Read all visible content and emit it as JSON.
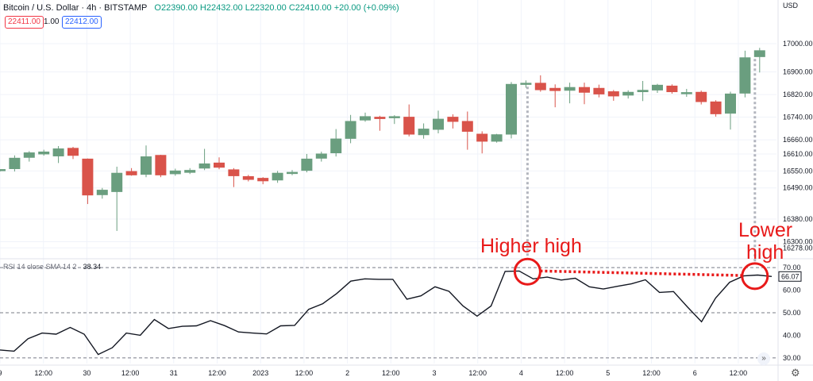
{
  "header": {
    "symbol": "Bitcoin / U.S. Dollar · 4h · BITSTAMP",
    "ohlc": "O22390.00 H22432.00 L22320.00 C22410.00 +20.00 (+0.09%)",
    "bid": "22411.00",
    "spread": "1.00",
    "ask": "22412.00"
  },
  "currency": "USD",
  "rsi_label": "RSI 14 close SMA 14 2",
  "rsi_value_label": "38.34",
  "rsi_last_label": "66.07",
  "annotations": {
    "higher_high": "Higher high",
    "lower_high_1": "Lower",
    "lower_high_2": "high"
  },
  "colors": {
    "up": "#6a9e7f",
    "down": "#d9534a",
    "rsi_line": "#131722",
    "annotation": "#e81919"
  },
  "chart_data": [
    {
      "type": "candlestick",
      "title": "Bitcoin / U.S. Dollar · 4h · BITSTAMP",
      "ylim": [
        16248,
        17070
      ],
      "y_ticks": [
        17000,
        16900,
        16820,
        16740,
        16660,
        16610,
        16550,
        16490,
        16380,
        16300,
        16278
      ],
      "y_tick_labels": [
        "17000.00",
        "16900.00",
        "16820.00",
        "16740.00",
        "16660.00",
        "16610.00",
        "16550.00",
        "16490.00",
        "16380.00",
        "16300.00",
        "16278.00"
      ],
      "candles": [
        {
          "o": 16552,
          "h": 16556,
          "l": 16548,
          "c": 16555
        },
        {
          "o": 16558,
          "h": 16605,
          "l": 16548,
          "c": 16595
        },
        {
          "o": 16598,
          "h": 16620,
          "l": 16583,
          "c": 16614
        },
        {
          "o": 16610,
          "h": 16625,
          "l": 16604,
          "c": 16617
        },
        {
          "o": 16603,
          "h": 16638,
          "l": 16578,
          "c": 16628
        },
        {
          "o": 16630,
          "h": 16635,
          "l": 16592,
          "c": 16605
        },
        {
          "o": 16592,
          "h": 16594,
          "l": 16433,
          "c": 16465
        },
        {
          "o": 16466,
          "h": 16490,
          "l": 16452,
          "c": 16482
        },
        {
          "o": 16477,
          "h": 16565,
          "l": 16338,
          "c": 16542
        },
        {
          "o": 16548,
          "h": 16560,
          "l": 16533,
          "c": 16536
        },
        {
          "o": 16538,
          "h": 16640,
          "l": 16528,
          "c": 16600
        },
        {
          "o": 16605,
          "h": 16607,
          "l": 16528,
          "c": 16536
        },
        {
          "o": 16540,
          "h": 16558,
          "l": 16533,
          "c": 16550
        },
        {
          "o": 16545,
          "h": 16560,
          "l": 16539,
          "c": 16552
        },
        {
          "o": 16560,
          "h": 16628,
          "l": 16553,
          "c": 16575
        },
        {
          "o": 16578,
          "h": 16598,
          "l": 16556,
          "c": 16563
        },
        {
          "o": 16554,
          "h": 16560,
          "l": 16493,
          "c": 16533
        },
        {
          "o": 16530,
          "h": 16536,
          "l": 16513,
          "c": 16520
        },
        {
          "o": 16524,
          "h": 16528,
          "l": 16503,
          "c": 16515
        },
        {
          "o": 16518,
          "h": 16550,
          "l": 16508,
          "c": 16542
        },
        {
          "o": 16542,
          "h": 16553,
          "l": 16535,
          "c": 16545
        },
        {
          "o": 16552,
          "h": 16610,
          "l": 16545,
          "c": 16592
        },
        {
          "o": 16595,
          "h": 16618,
          "l": 16583,
          "c": 16610
        },
        {
          "o": 16614,
          "h": 16698,
          "l": 16601,
          "c": 16663
        },
        {
          "o": 16665,
          "h": 16748,
          "l": 16648,
          "c": 16725
        },
        {
          "o": 16730,
          "h": 16756,
          "l": 16724,
          "c": 16742
        },
        {
          "o": 16740,
          "h": 16745,
          "l": 16692,
          "c": 16735
        },
        {
          "o": 16738,
          "h": 16747,
          "l": 16716,
          "c": 16742
        },
        {
          "o": 16740,
          "h": 16785,
          "l": 16672,
          "c": 16680
        },
        {
          "o": 16678,
          "h": 16718,
          "l": 16664,
          "c": 16698
        },
        {
          "o": 16697,
          "h": 16763,
          "l": 16683,
          "c": 16733
        },
        {
          "o": 16740,
          "h": 16750,
          "l": 16700,
          "c": 16725
        },
        {
          "o": 16725,
          "h": 16760,
          "l": 16625,
          "c": 16690
        },
        {
          "o": 16680,
          "h": 16690,
          "l": 16612,
          "c": 16655
        },
        {
          "o": 16655,
          "h": 16681,
          "l": 16650,
          "c": 16678
        },
        {
          "o": 16680,
          "h": 16864,
          "l": 16665,
          "c": 16856
        },
        {
          "o": 16858,
          "h": 16870,
          "l": 16844,
          "c": 16860
        },
        {
          "o": 16860,
          "h": 16888,
          "l": 16830,
          "c": 16837
        },
        {
          "o": 16842,
          "h": 16856,
          "l": 16775,
          "c": 16834
        },
        {
          "o": 16835,
          "h": 16862,
          "l": 16789,
          "c": 16845
        },
        {
          "o": 16845,
          "h": 16862,
          "l": 16786,
          "c": 16828
        },
        {
          "o": 16842,
          "h": 16855,
          "l": 16810,
          "c": 16822
        },
        {
          "o": 16830,
          "h": 16836,
          "l": 16798,
          "c": 16815
        },
        {
          "o": 16818,
          "h": 16835,
          "l": 16806,
          "c": 16828
        },
        {
          "o": 16830,
          "h": 16868,
          "l": 16797,
          "c": 16835
        },
        {
          "o": 16836,
          "h": 16858,
          "l": 16826,
          "c": 16853
        },
        {
          "o": 16850,
          "h": 16856,
          "l": 16823,
          "c": 16830
        },
        {
          "o": 16826,
          "h": 16840,
          "l": 16812,
          "c": 16827
        },
        {
          "o": 16828,
          "h": 16834,
          "l": 16785,
          "c": 16795
        },
        {
          "o": 16794,
          "h": 16800,
          "l": 16742,
          "c": 16752
        },
        {
          "o": 16754,
          "h": 16830,
          "l": 16696,
          "c": 16822
        },
        {
          "o": 16825,
          "h": 16975,
          "l": 16810,
          "c": 16950
        },
        {
          "o": 16954,
          "h": 16985,
          "l": 16898,
          "c": 16975
        }
      ],
      "x_tick_labels": [
        "9",
        "12:00",
        "30",
        "12:00",
        "31",
        "12:00",
        "2023",
        "12:00",
        "2",
        "12:00",
        "3",
        "12:00",
        "4",
        "12:00",
        "5",
        "12:00",
        "6",
        "12:00"
      ]
    },
    {
      "type": "line",
      "title": "RSI 14 close SMA 14 2",
      "ylim": [
        27.5,
        72.5
      ],
      "y_ticks": [
        70,
        60,
        50,
        40,
        30
      ],
      "y_tick_labels": [
        "70.00",
        "60.00",
        "50.00",
        "40.00",
        "30.00"
      ],
      "reference_lines": [
        70,
        50,
        30
      ],
      "values": [
        33.5,
        33,
        38.5,
        41,
        40.5,
        43.5,
        40.5,
        31.5,
        34.5,
        41,
        40,
        47,
        43,
        44,
        44.2,
        46.5,
        44.3,
        41.5,
        41,
        40.6,
        44.2,
        44.4,
        51.5,
        54,
        58.5,
        64,
        65,
        64.8,
        64.8,
        56,
        57.5,
        61.5,
        59.5,
        53,
        48.5,
        53,
        68.3,
        68.5,
        65,
        65.8,
        64.5,
        65.3,
        61.5,
        60.5,
        61.7,
        62.8,
        64.6,
        59,
        59.4,
        52.5,
        46,
        56.5,
        63.5,
        66.3,
        66.7,
        66.07
      ]
    }
  ]
}
